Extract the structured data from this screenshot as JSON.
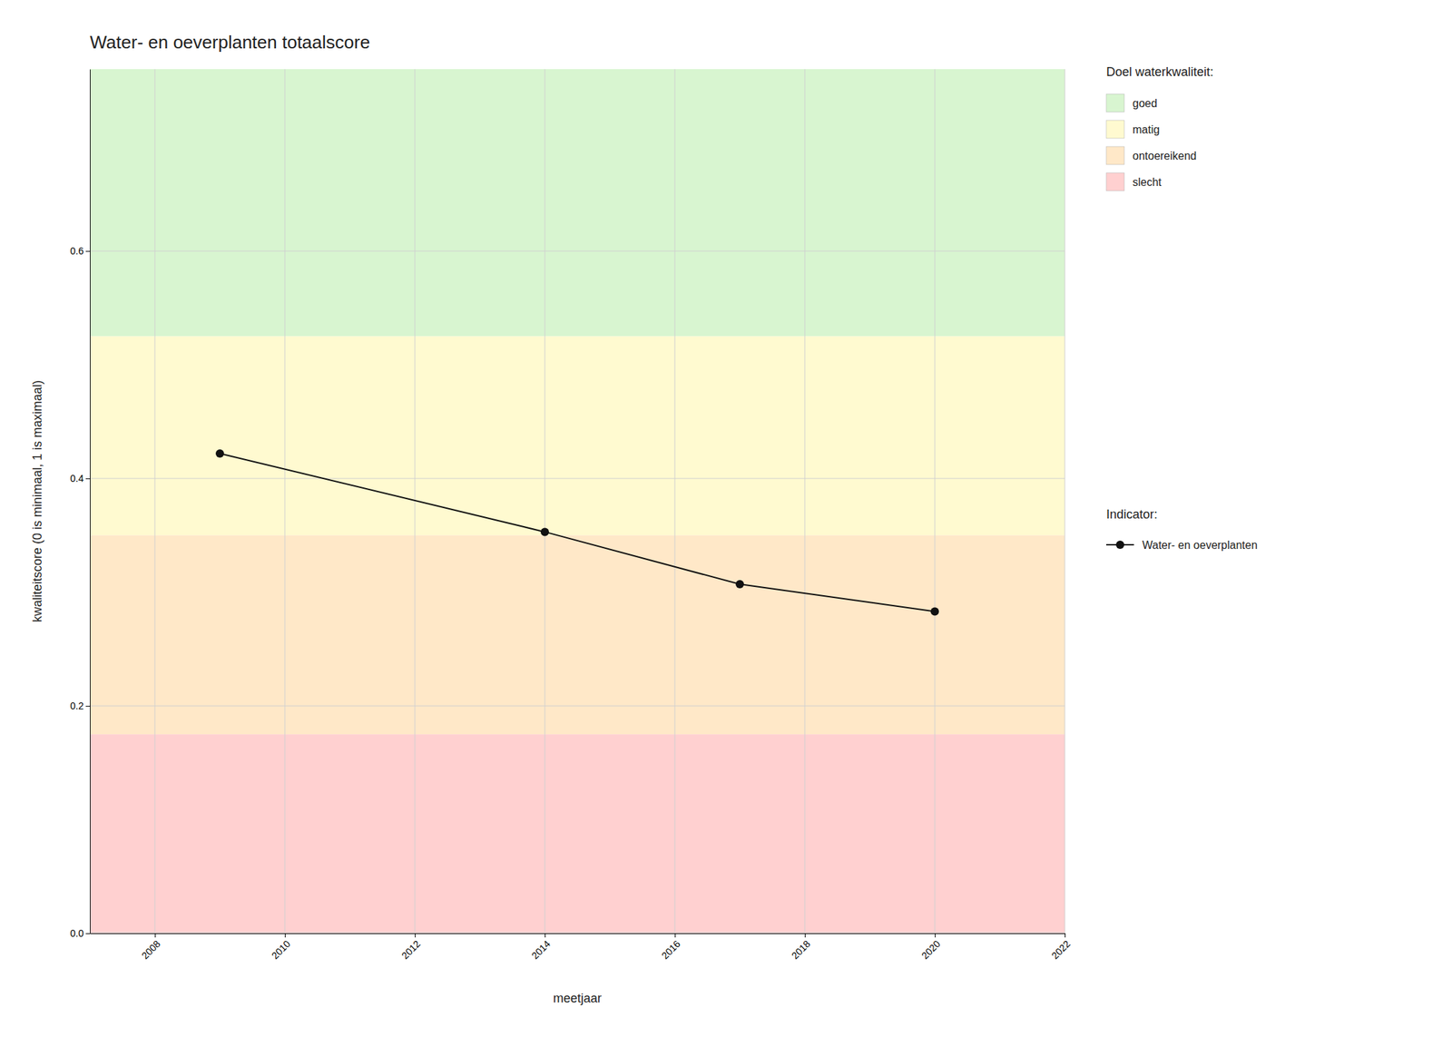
{
  "chart_data": {
    "type": "line",
    "title": "Water- en oeverplanten totaalscore",
    "xlabel": "meetjaar",
    "ylabel": "kwaliteitscore (0 is minimaal, 1 is maximaal)",
    "x": [
      2009,
      2014,
      2017,
      2020
    ],
    "series": [
      {
        "name": "Water- en oeverplanten",
        "color": "#111111",
        "marker": "circle",
        "line_style": "solid",
        "values": [
          0.422,
          0.353,
          0.307,
          0.283
        ]
      }
    ],
    "xlim": [
      2007,
      2022
    ],
    "xticks": [
      2008,
      2010,
      2012,
      2014,
      2016,
      2018,
      2020,
      2022
    ],
    "ylim": [
      0.0,
      0.76
    ],
    "yticks": [
      {
        "value": 0.0,
        "label": "0.0"
      },
      0.2,
      0.4,
      0.6
    ],
    "bands_title": "Doel waterkwaliteit:",
    "series_title": "Indicator:",
    "bands": [
      {
        "name": "goed",
        "from": 0.525,
        "to": 0.76,
        "color": "#D8F5D0"
      },
      {
        "name": "matig",
        "from": 0.35,
        "to": 0.525,
        "color": "#FFFAD0"
      },
      {
        "name": "ontoereikend",
        "from": 0.175,
        "to": 0.35,
        "color": "#FFE8C8"
      },
      {
        "name": "slecht",
        "from": 0.0,
        "to": 0.175,
        "color": "#FFD0D0"
      }
    ],
    "grid": true,
    "legend": "right"
  }
}
